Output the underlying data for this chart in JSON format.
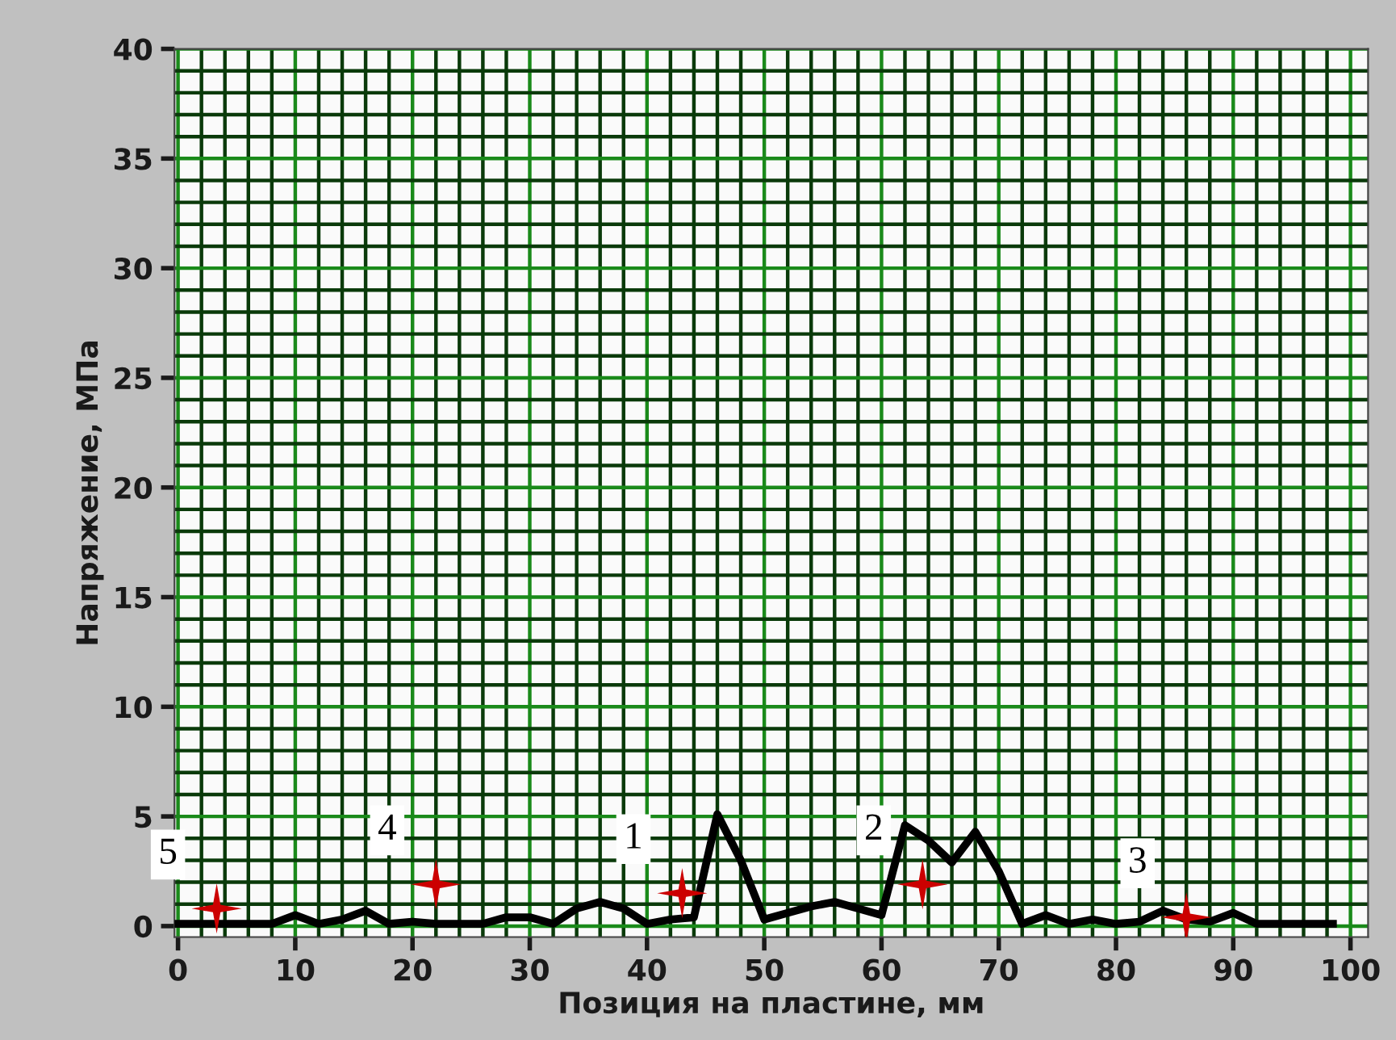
{
  "chart_data": {
    "type": "line",
    "xlabel": "Позиция на пластине, мм",
    "ylabel": "Напряжение, МПа",
    "xlim": [
      -0.3,
      101.5
    ],
    "ylim": [
      -0.5,
      40
    ],
    "xticks": [
      0,
      {
        "value": 2,
        "label": null
      },
      {
        "value": 4,
        "label": null
      },
      {
        "value": 6,
        "label": null
      },
      {
        "value": 8,
        "label": null
      },
      10,
      {
        "value": 12,
        "label": null
      },
      {
        "value": 14,
        "label": null
      },
      {
        "value": 16,
        "label": null
      },
      {
        "value": 18,
        "label": null
      },
      20,
      {
        "value": 22,
        "label": null
      },
      {
        "value": 24,
        "label": null
      },
      {
        "value": 26,
        "label": null
      },
      {
        "value": 28,
        "label": null
      },
      30,
      {
        "value": 32,
        "label": null
      },
      {
        "value": 34,
        "label": null
      },
      {
        "value": 36,
        "label": null
      },
      {
        "value": 38,
        "label": null
      },
      40,
      {
        "value": 42,
        "label": null
      },
      {
        "value": 44,
        "label": null
      },
      {
        "value": 46,
        "label": null
      },
      {
        "value": 48,
        "label": null
      },
      50,
      {
        "value": 52,
        "label": null
      },
      {
        "value": 54,
        "label": null
      },
      {
        "value": 56,
        "label": null
      },
      {
        "value": 58,
        "label": null
      },
      60,
      {
        "value": 62,
        "label": null
      },
      {
        "value": 64,
        "label": null
      },
      {
        "value": 66,
        "label": null
      },
      {
        "value": 68,
        "label": null
      },
      70,
      {
        "value": 72,
        "label": null
      },
      {
        "value": 74,
        "label": null
      },
      {
        "value": 76,
        "label": null
      },
      {
        "value": 78,
        "label": null
      },
      80,
      {
        "value": 82,
        "label": null
      },
      {
        "value": 84,
        "label": null
      },
      {
        "value": 86,
        "label": null
      },
      {
        "value": 88,
        "label": null
      },
      90,
      {
        "value": 92,
        "label": null
      },
      {
        "value": 94,
        "label": null
      },
      {
        "value": 96,
        "label": null
      },
      {
        "value": 98,
        "label": null
      },
      100
    ],
    "yticks": [
      0,
      {
        "value": 1,
        "label": null
      },
      {
        "value": 2,
        "label": null
      },
      {
        "value": 3,
        "label": null
      },
      {
        "value": 4,
        "label": null
      },
      5,
      {
        "value": 6,
        "label": null
      },
      {
        "value": 7,
        "label": null
      },
      {
        "value": 8,
        "label": null
      },
      {
        "value": 9,
        "label": null
      },
      10,
      {
        "value": 11,
        "label": null
      },
      {
        "value": 12,
        "label": null
      },
      {
        "value": 13,
        "label": null
      },
      {
        "value": 14,
        "label": null
      },
      15,
      {
        "value": 16,
        "label": null
      },
      {
        "value": 17,
        "label": null
      },
      {
        "value": 18,
        "label": null
      },
      {
        "value": 19,
        "label": null
      },
      20,
      {
        "value": 21,
        "label": null
      },
      {
        "value": 22,
        "label": null
      },
      {
        "value": 23,
        "label": null
      },
      {
        "value": 24,
        "label": null
      },
      25,
      {
        "value": 26,
        "label": null
      },
      {
        "value": 27,
        "label": null
      },
      {
        "value": 28,
        "label": null
      },
      {
        "value": 29,
        "label": null
      },
      30,
      {
        "value": 31,
        "label": null
      },
      {
        "value": 32,
        "label": null
      },
      {
        "value": 33,
        "label": null
      },
      {
        "value": 34,
        "label": null
      },
      35,
      {
        "value": 36,
        "label": null
      },
      {
        "value": 37,
        "label": null
      },
      {
        "value": 38,
        "label": null
      },
      {
        "value": 39,
        "label": null
      },
      40
    ],
    "grid": true,
    "legend": false,
    "series": [
      {
        "color": "#000000",
        "marker": "none",
        "line_style": "solid",
        "x": [
          0,
          2,
          4,
          6,
          8,
          10,
          12,
          14,
          16,
          18,
          20,
          22,
          24,
          26,
          28,
          30,
          32,
          34,
          36,
          38,
          40,
          42,
          44,
          46,
          48,
          50,
          52,
          54,
          56,
          58,
          60,
          62,
          64,
          66,
          68,
          70,
          72,
          74,
          76,
          78,
          80,
          82,
          84,
          86,
          88,
          90,
          92,
          94,
          96,
          98.5
        ],
        "values": [
          0.1,
          0.1,
          0.1,
          0.1,
          0.1,
          0.5,
          0.1,
          0.3,
          0.7,
          0.1,
          0.2,
          0.1,
          0.1,
          0.1,
          0.4,
          0.4,
          0.1,
          0.8,
          1.1,
          0.8,
          0.1,
          0.3,
          0.4,
          5.1,
          3.0,
          0.3,
          0.6,
          0.9,
          1.1,
          0.8,
          0.5,
          4.6,
          3.9,
          2.9,
          4.3,
          2.5,
          0.1,
          0.5,
          0.1,
          0.3,
          0.1,
          0.2,
          0.7,
          0.3,
          0.2,
          0.6,
          0.1,
          0.1,
          0.1,
          0.1
        ]
      },
      {
        "type": "scatter",
        "color": "#cc0000",
        "marker": "star",
        "x": [
          3.3,
          22,
          43,
          63.5,
          86
        ],
        "values": [
          0.8,
          1.9,
          1.5,
          1.9,
          0.4
        ]
      }
    ],
    "annotations": [
      {
        "text": "5",
        "x": 3.3,
        "y": 0.8
      },
      {
        "text": "4",
        "x": 22,
        "y": 1.9
      },
      {
        "text": "1",
        "x": 43,
        "y": 1.5
      },
      {
        "text": "2",
        "x": 63.5,
        "y": 1.9
      },
      {
        "text": "3",
        "x": 86,
        "y": 0.4
      }
    ]
  }
}
